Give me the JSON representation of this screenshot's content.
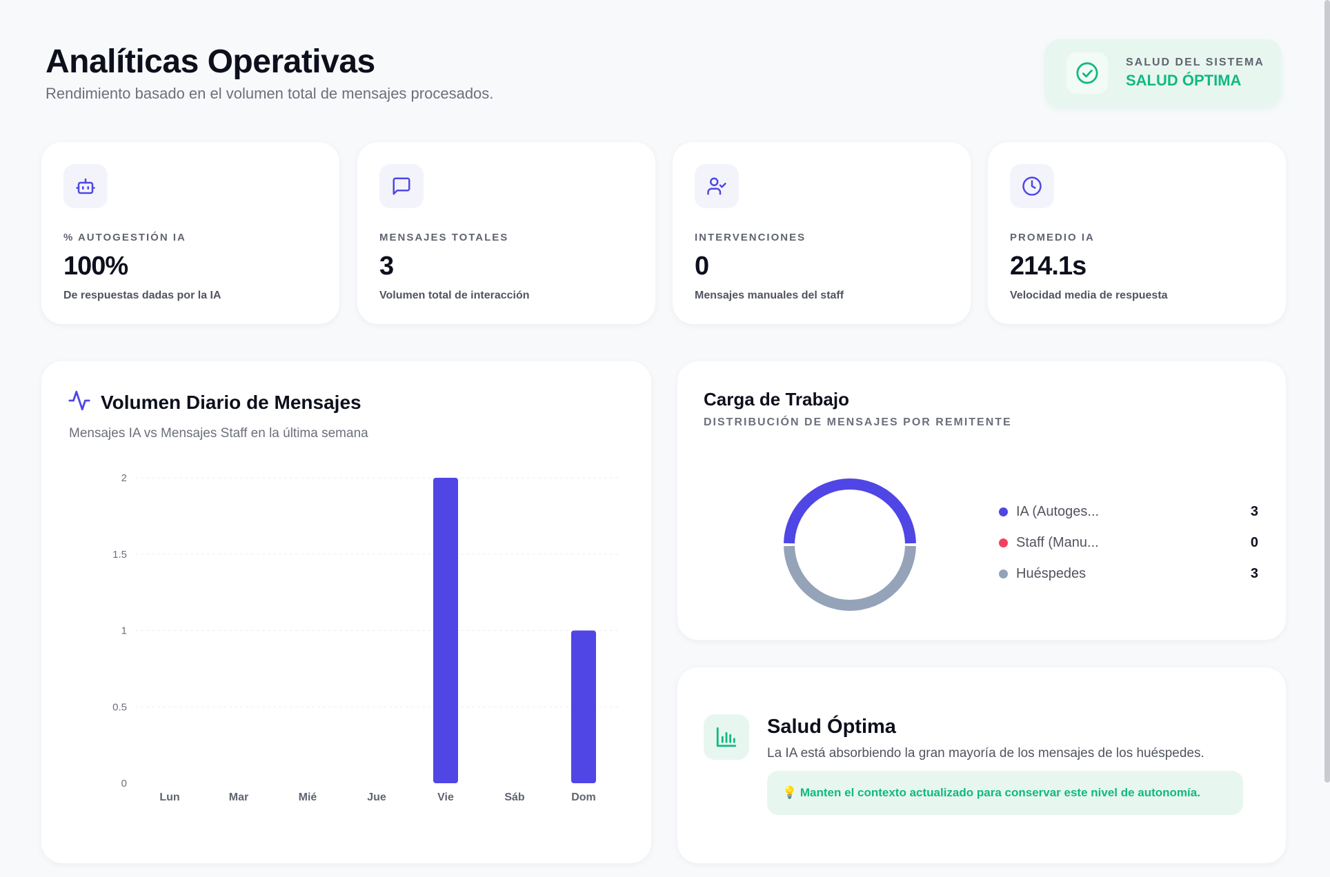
{
  "header": {
    "title": "Analíticas Operativas",
    "subtitle": "Rendimiento basado en el volumen total de mensajes procesados."
  },
  "system_health": {
    "label": "SALUD DEL SISTEMA",
    "value": "SALUD ÓPTIMA",
    "icon": "check-circle-icon",
    "color": "#10b981"
  },
  "stats": [
    {
      "icon": "bot-icon",
      "label": "% AUTOGESTIÓN IA",
      "value": "100%",
      "desc": "De respuestas dadas por la IA"
    },
    {
      "icon": "message-icon",
      "label": "MENSAJES TOTALES",
      "value": "3",
      "desc": "Volumen total de interacción"
    },
    {
      "icon": "user-check-icon",
      "label": "INTERVENCIONES",
      "value": "0",
      "desc": "Mensajes manuales del staff"
    },
    {
      "icon": "clock-icon",
      "label": "PROMEDIO IA",
      "value": "214.1s",
      "desc": "Velocidad media de respuesta"
    }
  ],
  "daily_chart": {
    "title": "Volumen Diario de Mensajes",
    "subtitle": "Mensajes IA vs Mensajes Staff en la última semana",
    "icon": "activity-icon"
  },
  "workload": {
    "title": "Carga de Trabajo",
    "subtitle": "DISTRIBUCIÓN DE MENSAJES POR REMITENTE",
    "items": [
      {
        "name": "IA (Autoges...",
        "value": "3",
        "color": "#4f46e5"
      },
      {
        "name": "Staff (Manu...",
        "value": "0",
        "color": "#f43f5e"
      },
      {
        "name": "Huéspedes",
        "value": "3",
        "color": "#94a3b8"
      }
    ]
  },
  "tip": {
    "icon": "bar-chart-icon",
    "title": "Salud Óptima",
    "text": "La IA está absorbiendo la gran mayoría de los mensajes de los huéspedes.",
    "note": "💡 Manten el contexto actualizado para conservar este nivel de autonomía."
  },
  "colors": {
    "accent": "#4f46e5",
    "success": "#10b981",
    "muted": "#94a3b8"
  },
  "chart_data": [
    {
      "type": "bar",
      "categories": [
        "Lun",
        "Mar",
        "Mié",
        "Jue",
        "Vie",
        "Sáb",
        "Dom"
      ],
      "series": [
        {
          "values": [
            0,
            0,
            0,
            0,
            2,
            0,
            1
          ],
          "color": "#4f46e5"
        }
      ],
      "yticks": [
        "0",
        "0.5",
        "1",
        "1.5",
        "2"
      ],
      "ylim": [
        0,
        2
      ],
      "grid": true
    },
    {
      "type": "pie",
      "style": "donut",
      "categories": [
        "IA (Autoges...",
        "Staff (Manu...",
        "Huéspedes"
      ],
      "values": [
        3,
        0,
        3
      ],
      "colors": [
        "#4f46e5",
        "#f43f5e",
        "#94a3b8"
      ]
    }
  ]
}
